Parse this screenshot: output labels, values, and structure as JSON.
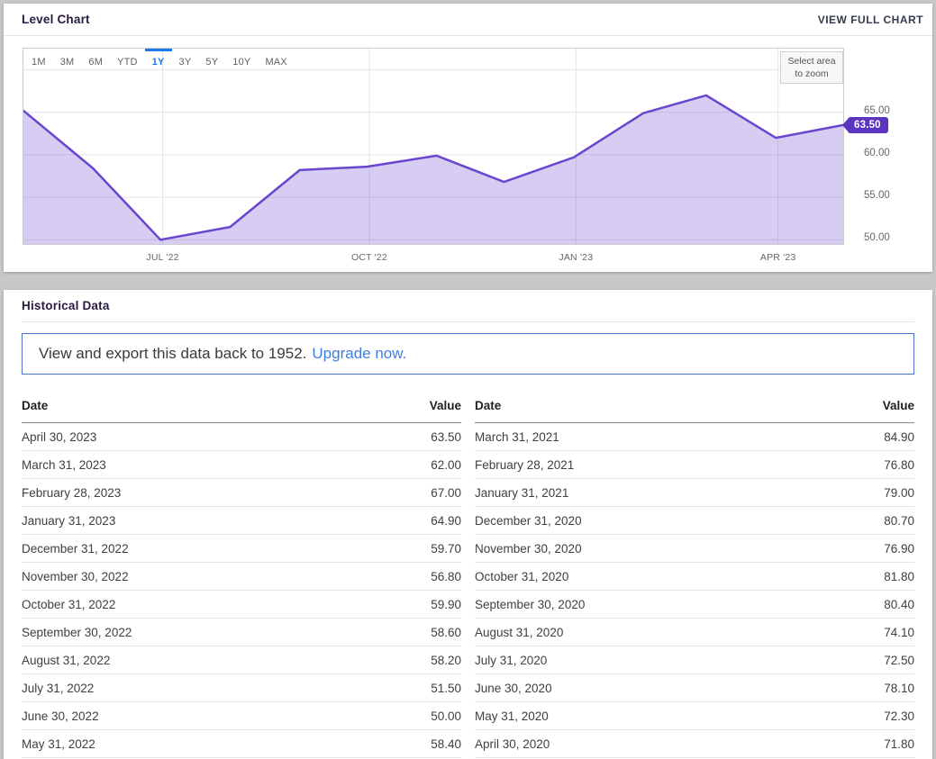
{
  "level_chart": {
    "title": "Level Chart",
    "view_full_chart_label": "VIEW FULL CHART",
    "range_buttons": [
      "1M",
      "3M",
      "6M",
      "YTD",
      "1Y",
      "3Y",
      "5Y",
      "10Y",
      "MAX"
    ],
    "selected_range": "1Y",
    "zoom_hint_lines": [
      "Select area",
      "to zoom"
    ]
  },
  "chart_data": {
    "type": "area",
    "title": "Level Chart",
    "series": [
      {
        "name": "Level",
        "points": [
          {
            "date": "2022-04-30",
            "value": 65.2
          },
          {
            "date": "2022-05-31",
            "value": 58.4
          },
          {
            "date": "2022-06-30",
            "value": 50.0
          },
          {
            "date": "2022-07-31",
            "value": 51.5
          },
          {
            "date": "2022-08-31",
            "value": 58.2
          },
          {
            "date": "2022-09-30",
            "value": 58.6
          },
          {
            "date": "2022-10-31",
            "value": 59.9
          },
          {
            "date": "2022-11-30",
            "value": 56.8
          },
          {
            "date": "2022-12-31",
            "value": 59.7
          },
          {
            "date": "2023-01-31",
            "value": 64.9
          },
          {
            "date": "2023-02-28",
            "value": 67.0
          },
          {
            "date": "2023-03-31",
            "value": 62.0
          },
          {
            "date": "2023-04-30",
            "value": 63.5
          }
        ]
      }
    ],
    "ylim": [
      49.5,
      72.5
    ],
    "y_gridlines": [
      {
        "value": 70,
        "label": ""
      },
      {
        "value": 65,
        "label": "65.00"
      },
      {
        "value": 60,
        "label": "60.00"
      },
      {
        "value": 55,
        "label": "55.00"
      },
      {
        "value": 50,
        "label": "50.00"
      }
    ],
    "x_gridlines": [
      {
        "date": "2022-07-01",
        "label": "JUL '22"
      },
      {
        "date": "2022-10-01",
        "label": "OCT '22"
      },
      {
        "date": "2023-01-01",
        "label": "JAN '23"
      },
      {
        "date": "2023-04-01",
        "label": "APR '23"
      }
    ],
    "last_value_badge": {
      "label": "63.50",
      "value": 63.5
    },
    "legend": "none",
    "grid": true,
    "colors": {
      "line": "#6a46cf",
      "fill": "rgba(106,70,207,0.27)",
      "grid": "#e4e4e4",
      "badge": "#5b34bf",
      "active_range": "#1c79e8"
    }
  },
  "historical": {
    "title": "Historical Data",
    "banner": {
      "text": "View and export this data back to 1952.",
      "link_label": "Upgrade now."
    },
    "left_table": {
      "headers": [
        "Date",
        "Value"
      ],
      "rows": [
        [
          "April 30, 2023",
          "63.50"
        ],
        [
          "March 31, 2023",
          "62.00"
        ],
        [
          "February 28, 2023",
          "67.00"
        ],
        [
          "January 31, 2023",
          "64.90"
        ],
        [
          "December 31, 2022",
          "59.70"
        ],
        [
          "November 30, 2022",
          "56.80"
        ],
        [
          "October 31, 2022",
          "59.90"
        ],
        [
          "September 30, 2022",
          "58.60"
        ],
        [
          "August 31, 2022",
          "58.20"
        ],
        [
          "July 31, 2022",
          "51.50"
        ],
        [
          "June 30, 2022",
          "50.00"
        ],
        [
          "May 31, 2022",
          "58.40"
        ]
      ]
    },
    "right_table": {
      "headers": [
        "Date",
        "Value"
      ],
      "rows": [
        [
          "March 31, 2021",
          "84.90"
        ],
        [
          "February 28, 2021",
          "76.80"
        ],
        [
          "January 31, 2021",
          "79.00"
        ],
        [
          "December 31, 2020",
          "80.70"
        ],
        [
          "November 30, 2020",
          "76.90"
        ],
        [
          "October 31, 2020",
          "81.80"
        ],
        [
          "September 30, 2020",
          "80.40"
        ],
        [
          "August 31, 2020",
          "74.10"
        ],
        [
          "July 31, 2020",
          "72.50"
        ],
        [
          "June 30, 2020",
          "78.10"
        ],
        [
          "May 31, 2020",
          "72.30"
        ],
        [
          "April 30, 2020",
          "71.80"
        ]
      ]
    }
  }
}
